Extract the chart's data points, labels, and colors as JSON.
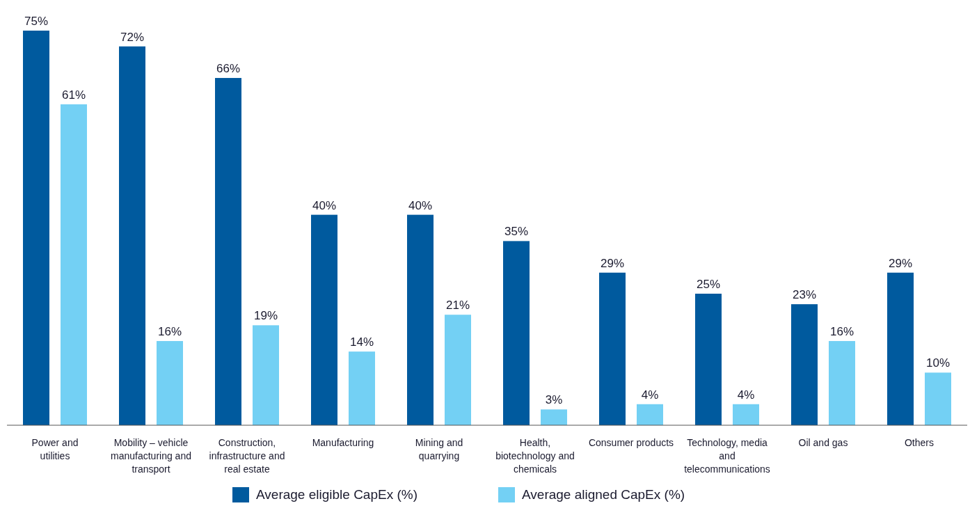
{
  "chart_data": {
    "type": "bar",
    "categories": [
      "Power and utilities",
      "Mobility – vehicle manufacturing and transport",
      "Construction, infrastructure and real estate",
      "Manufacturing",
      "Mining and quarrying",
      "Health, biotechnology and chemicals",
      "Consumer products",
      "Technology, media and telecommunications",
      "Oil and gas",
      "Others"
    ],
    "series": [
      {
        "name": "Average eligible CapEx (%)",
        "color": "#005a9e",
        "values": [
          75,
          72,
          66,
          40,
          40,
          35,
          29,
          25,
          23,
          29
        ],
        "value_labels": [
          "75%",
          "72%",
          "66%",
          "40%",
          "40%",
          "35%",
          "29%",
          "25%",
          "23%",
          "29%"
        ]
      },
      {
        "name": "Average aligned CapEx (%)",
        "color": "#73d0f4",
        "values": [
          61,
          16,
          19,
          14,
          21,
          3,
          4,
          4,
          16,
          10
        ],
        "value_labels": [
          "61%",
          "16%",
          "19%",
          "14%",
          "21%",
          "3%",
          "4%",
          "4%",
          "16%",
          "10%"
        ]
      }
    ],
    "legend": "bottom"
  }
}
